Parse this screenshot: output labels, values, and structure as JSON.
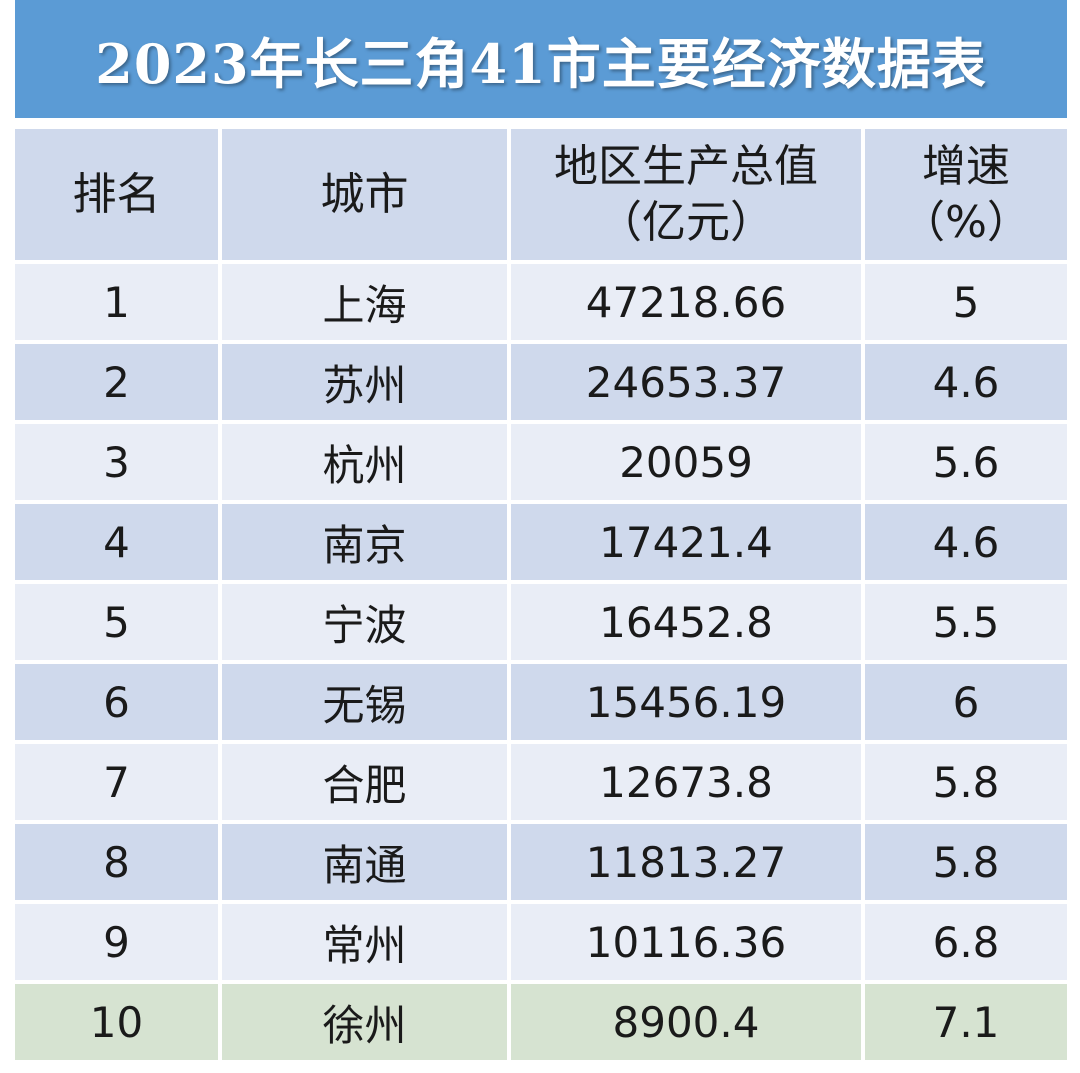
{
  "title": "2023年长三角41市主要经济数据表",
  "headers": {
    "rank": "排名",
    "city": "城市",
    "gdp_line1": "地区生产总值",
    "gdp_line2": "（亿元）",
    "growth_line1": "增速",
    "growth_line2": "（%）"
  },
  "rows": [
    {
      "rank": "1",
      "city": "上海",
      "gdp": "47218.66",
      "growth": "5"
    },
    {
      "rank": "2",
      "city": "苏州",
      "gdp": "24653.37",
      "growth": "4.6"
    },
    {
      "rank": "3",
      "city": "杭州",
      "gdp": "20059",
      "growth": "5.6"
    },
    {
      "rank": "4",
      "city": "南京",
      "gdp": "17421.4",
      "growth": "4.6"
    },
    {
      "rank": "5",
      "city": "宁波",
      "gdp": "16452.8",
      "growth": "5.5"
    },
    {
      "rank": "6",
      "city": "无锡",
      "gdp": "15456.19",
      "growth": "6"
    },
    {
      "rank": "7",
      "city": "合肥",
      "gdp": "12673.8",
      "growth": "5.8"
    },
    {
      "rank": "8",
      "city": "南通",
      "gdp": "11813.27",
      "growth": "5.8"
    },
    {
      "rank": "9",
      "city": "常州",
      "gdp": "10116.36",
      "growth": "6.8"
    },
    {
      "rank": "10",
      "city": "徐州",
      "gdp": "8900.4",
      "growth": "7.1"
    }
  ],
  "colors": {
    "title_bg": "#5b9bd5",
    "header_bg": "#cfd9ec",
    "row_light": "#e9edf6",
    "row_dark": "#cfd9ec",
    "row_highlight": "#d6e3d1"
  }
}
